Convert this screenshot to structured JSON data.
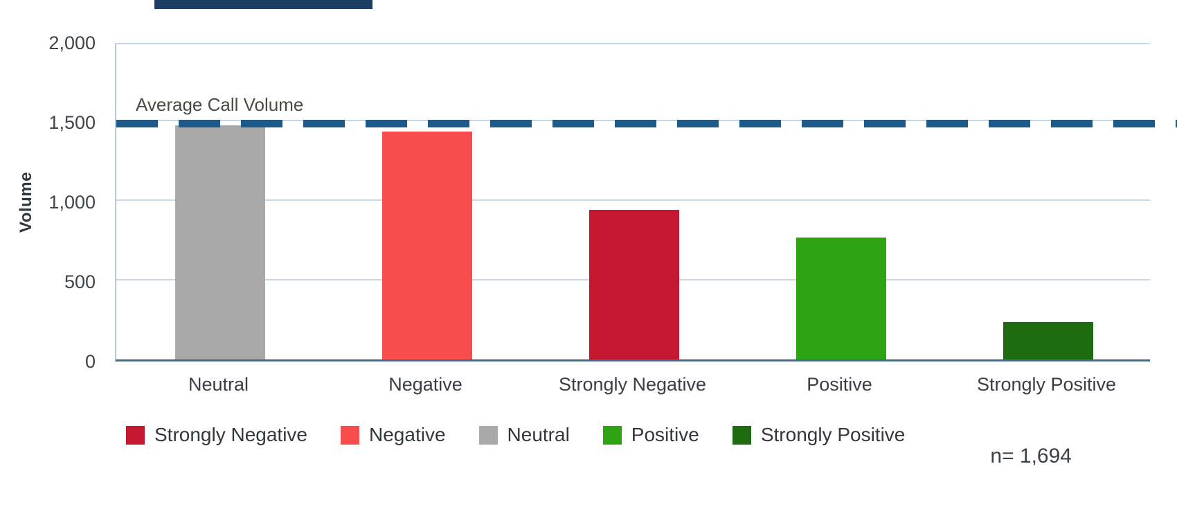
{
  "chart_data": {
    "type": "bar",
    "title": "",
    "ylabel": "Volume",
    "xlabel": "",
    "ylim": [
      0,
      2000
    ],
    "yticks": [
      0,
      500,
      1000,
      1500,
      2000
    ],
    "ytick_labels": [
      "0",
      "500",
      "1,000",
      "1,500",
      "2,000"
    ],
    "grid": true,
    "categories": [
      "Neutral",
      "Negative",
      "Strongly Negative",
      "Positive",
      "Strongly Positive"
    ],
    "values": [
      1470,
      1430,
      940,
      765,
      235
    ],
    "bar_colors": [
      "#A9A9A9",
      "#F94C4C",
      "#C3182F",
      "#2DA313",
      "#1F6B10"
    ],
    "average_line": {
      "label": "Average Call Volume",
      "value": 1505,
      "color": "#1A5A8C",
      "style": "dashed"
    },
    "legend_position": "bottom",
    "legend": [
      {
        "label": "Strongly Negative",
        "color": "#C3182F"
      },
      {
        "label": "Negative",
        "color": "#F94C4C"
      },
      {
        "label": "Neutral",
        "color": "#A9A9A9"
      },
      {
        "label": "Positive",
        "color": "#2DA313"
      },
      {
        "label": "Strongly Positive",
        "color": "#1F6B10"
      }
    ],
    "sample_size_note": "n= 1,694"
  }
}
